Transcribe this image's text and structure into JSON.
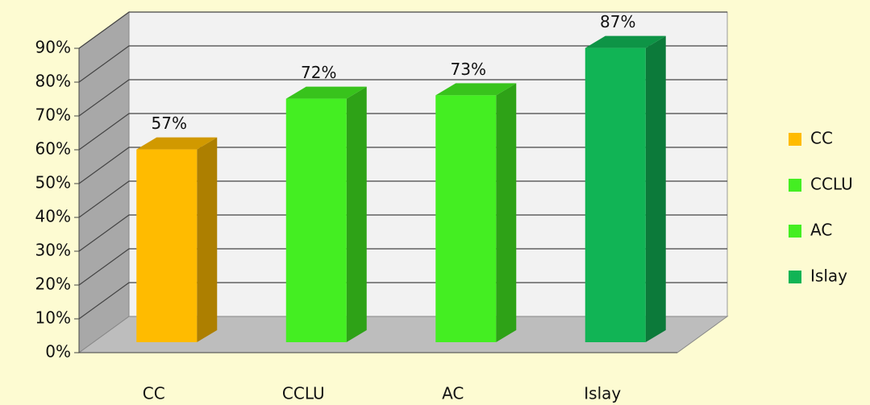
{
  "chart_data": {
    "type": "bar3d",
    "categories": [
      "CC",
      "CCLU",
      "AC",
      "Islay"
    ],
    "values": [
      57,
      72,
      73,
      87
    ],
    "value_labels": [
      "57%",
      "72%",
      "73%",
      "87%"
    ],
    "colors": [
      "#ffbb00",
      "#44ee22",
      "#44ee22",
      "#11b455"
    ],
    "ylim": [
      0,
      90
    ],
    "yticks": [
      {
        "value": 0,
        "label": "0%"
      },
      {
        "value": 10,
        "label": "10%"
      },
      {
        "value": 20,
        "label": "20%"
      },
      {
        "value": 30,
        "label": "30%"
      },
      {
        "value": 40,
        "label": "40%"
      },
      {
        "value": 50,
        "label": "50%"
      },
      {
        "value": 60,
        "label": "60%"
      },
      {
        "value": 70,
        "label": "70%"
      },
      {
        "value": 80,
        "label": "80%"
      },
      {
        "value": 90,
        "label": "90%"
      }
    ],
    "grid": true,
    "legend": "right"
  }
}
